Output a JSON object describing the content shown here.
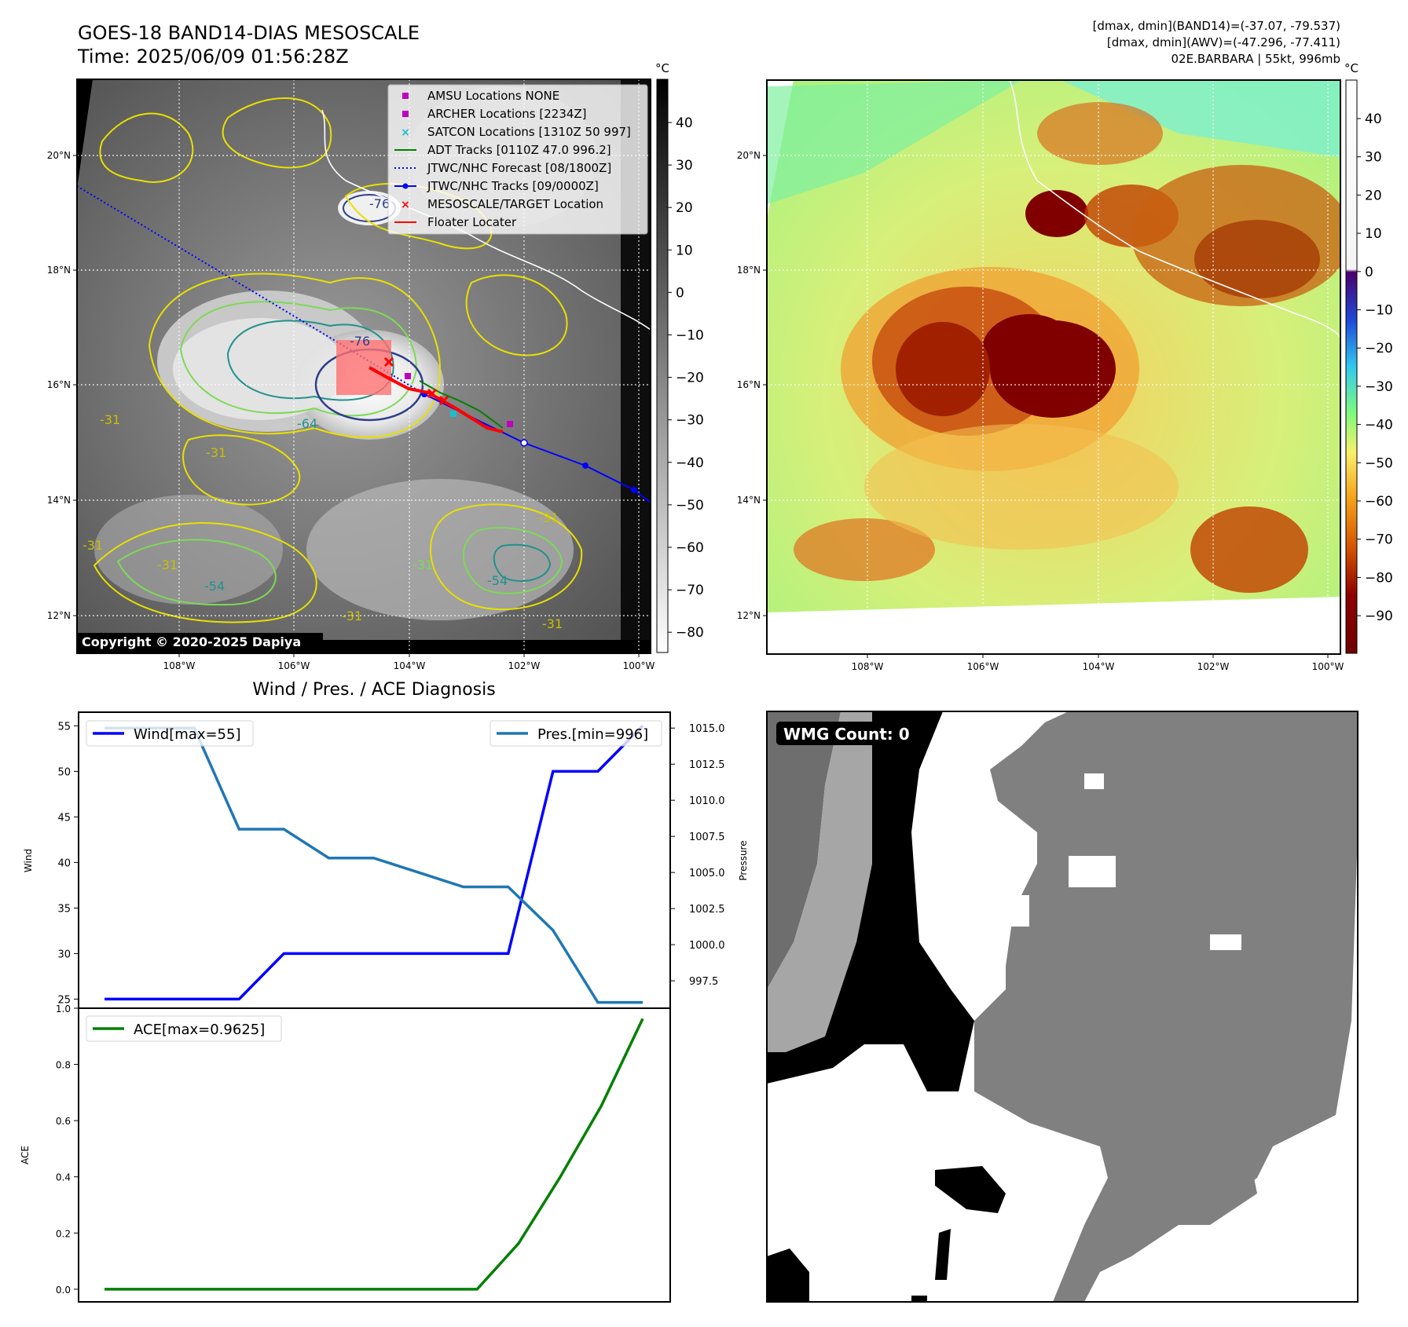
{
  "header": {
    "title": "GOES-18 BAND14-DIAS MESOSCALE",
    "time": "Time: 2025/06/09 01:56:28Z",
    "stats_band14": "[dmax, dmin](BAND14)=(-37.07, -79.537)",
    "stats_awv": "[dmax, dmin](AWV)=(-47.296, -77.411)",
    "storm": "02E.BARBARA | 55kt, 996mb"
  },
  "map_axes": {
    "lon_labels": [
      "108°W",
      "106°W",
      "104°W",
      "102°W",
      "100°W"
    ],
    "lat_labels": [
      "20°N",
      "18°N",
      "16°N",
      "14°N",
      "12°N"
    ]
  },
  "ir_panel": {
    "colorbar_unit": "°C",
    "colorbar_ticks": [
      "40",
      "30",
      "20",
      "10",
      "0",
      "−10",
      "−20",
      "−30",
      "−40",
      "−50",
      "−60",
      "−70",
      "−80"
    ],
    "copyright": "Copyright © 2020-2025 Dapiya",
    "contour_labels": [
      "-76",
      "-64",
      "-76",
      "-31",
      "-31",
      "-31",
      "-54",
      "-31",
      "-31",
      "-54",
      "-31",
      "-31",
      "-31"
    ],
    "legend": [
      {
        "label": "AMSU Locations NONE",
        "color": "#bf00bf"
      },
      {
        "label": "ARCHER Locations [2234Z]",
        "color": "#bf00bf"
      },
      {
        "label": "SATCON Locations [1310Z 50 997]",
        "color": "#17becf"
      },
      {
        "label": "ADT Tracks [0110Z 47.0 996.2]",
        "color": "#008000"
      },
      {
        "label": "JTWC/NHC Forecast [08/1800Z]",
        "color": "#0000ff"
      },
      {
        "label": "JTWC/NHC Tracks [09/0000Z]",
        "color": "#0000ff"
      },
      {
        "label": "MESOSCALE/TARGET Location",
        "color": "#ff0000"
      },
      {
        "label": "Floater Locater",
        "color": "#ff0000"
      }
    ]
  },
  "awv_panel": {
    "colorbar_unit": "°C",
    "colorbar_ticks": [
      "40",
      "30",
      "20",
      "10",
      "0",
      "−10",
      "−20",
      "−30",
      "−40",
      "−50",
      "−60",
      "−70",
      "−80",
      "−90"
    ]
  },
  "wmg_panel": {
    "label": "WMG Count: 0"
  },
  "diag": {
    "title": "Wind / Pres. / ACE Diagnosis"
  },
  "chart_data": [
    {
      "type": "line",
      "title": "Wind / Pres. / ACE Diagnosis",
      "ylabel": "Wind",
      "ylabel_right": "Pressure",
      "ylim": [
        24,
        56.5
      ],
      "ylim_right": [
        995.6,
        1016.1
      ],
      "yticks": [
        25,
        30,
        35,
        40,
        45,
        50,
        55
      ],
      "yticks_right": [
        997.5,
        1000.0,
        1002.5,
        1005.0,
        1007.5,
        1010.0,
        1012.5,
        1015.0
      ],
      "series": [
        {
          "name": "Wind[max=55]",
          "axis": "left",
          "color": "#0000ff",
          "values": [
            25,
            25,
            25,
            25,
            30,
            30,
            30,
            30,
            30,
            30,
            50,
            50,
            55
          ]
        },
        {
          "name": "Pres.[min=996]",
          "axis": "right",
          "color": "#1f77b4",
          "values": [
            1015,
            1015,
            1015,
            1008,
            1008,
            1006,
            1006,
            1005,
            1004,
            1004,
            1001,
            996,
            996
          ]
        }
      ]
    },
    {
      "type": "line",
      "ylabel": "ACE",
      "ylim": [
        -0.045,
        1.0
      ],
      "yticks": [
        0.0,
        0.2,
        0.4,
        0.6,
        0.8,
        1.0
      ],
      "series": [
        {
          "name": "ACE[max=0.9625]",
          "color": "#008000",
          "values": [
            0,
            0,
            0,
            0,
            0,
            0,
            0,
            0,
            0,
            0,
            0.1625,
            0.3975,
            0.6525,
            0.9625
          ]
        }
      ]
    }
  ]
}
